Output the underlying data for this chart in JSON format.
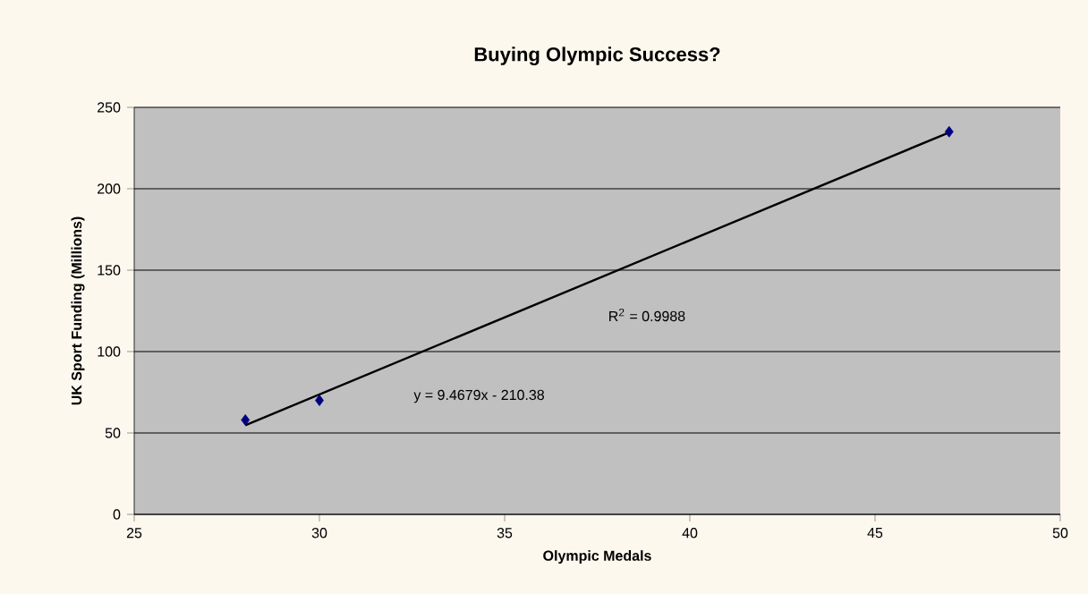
{
  "chart_data": {
    "type": "scatter",
    "title": "Buying Olympic Success?",
    "xlabel": "Olympic Medals",
    "ylabel": "UK Sport Funding (Millions)",
    "series": [
      {
        "color": "#000080",
        "marker": "diamond",
        "x": [
          28,
          30,
          47
        ],
        "values": [
          58,
          70,
          235
        ]
      },
      {
        "type": "line",
        "color": "#000000",
        "marker": "none",
        "line_style": "solid",
        "x": [
          28,
          47
        ],
        "values": [
          54.7,
          234.6
        ]
      }
    ],
    "annotations": [
      "y = 9.4679x - 210.38",
      "R$^{2}$ = 0.9988"
    ],
    "xlim": [
      25,
      50
    ],
    "xticks": [
      25,
      30,
      35,
      40,
      45,
      50
    ],
    "ylim": [
      0,
      250
    ],
    "yticks": [
      0,
      50,
      100,
      150,
      200,
      250
    ],
    "grid": "y"
  }
}
